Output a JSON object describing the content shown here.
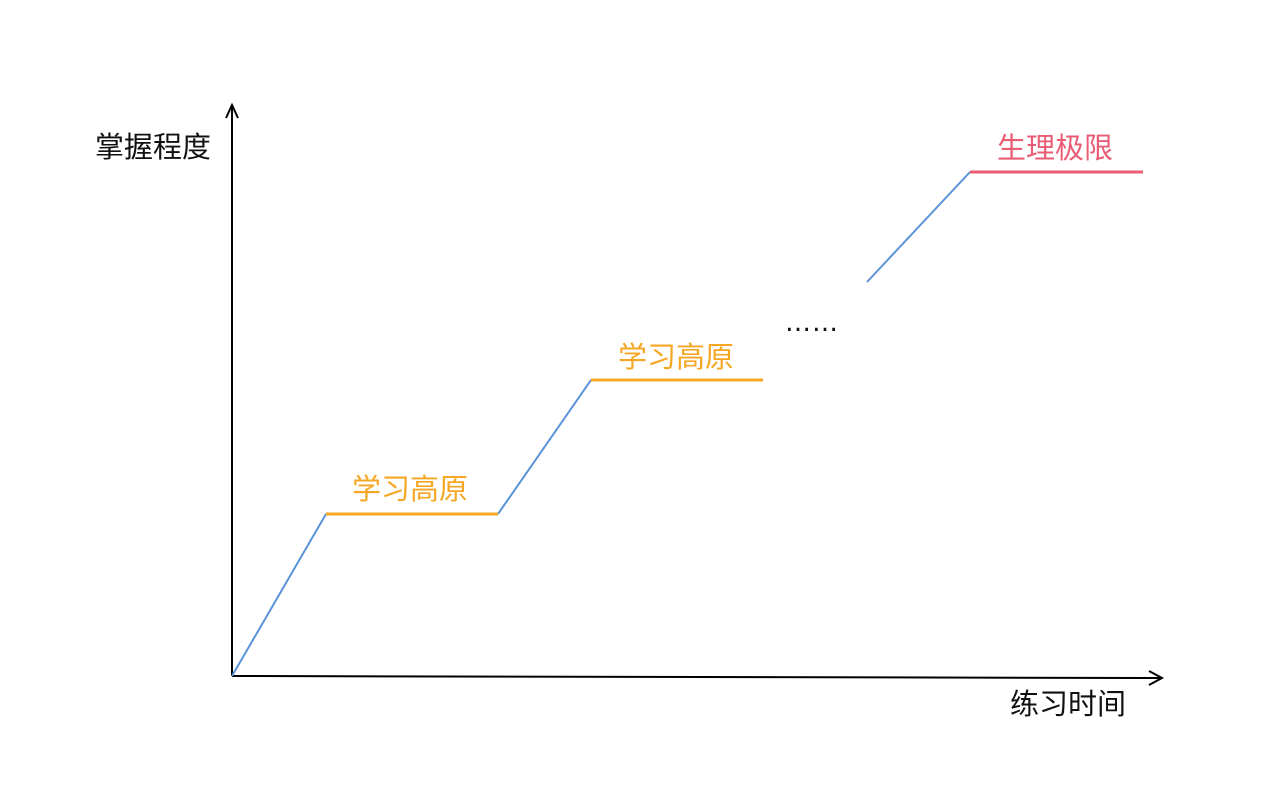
{
  "axes": {
    "y_label": "掌握程度",
    "x_label": "练习时间"
  },
  "stages": [
    {
      "label": "学习高原",
      "color": "#f5a623"
    },
    {
      "label": "学习高原",
      "color": "#f5a623"
    },
    {
      "label": "生理极限",
      "color": "#e85c74"
    }
  ],
  "ellipsis": "……",
  "colors": {
    "axis": "#000000",
    "progress_line": "#5b93d9",
    "plateau": "#f5a623",
    "limit": "#e85c74"
  }
}
